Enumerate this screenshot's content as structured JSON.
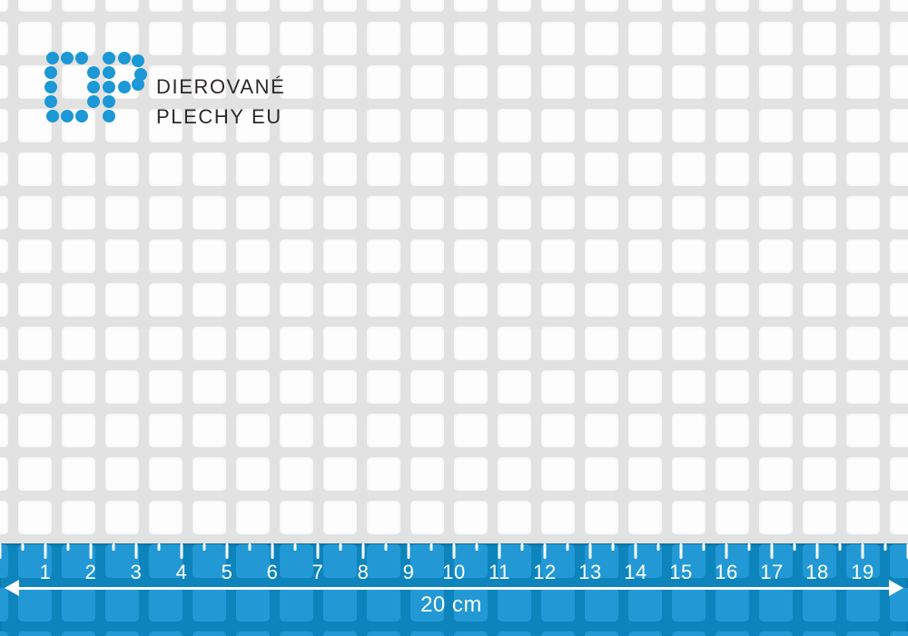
{
  "sheet": {
    "description": "perforated metal sheet with square holes",
    "hole_color": "#fdfdfd",
    "web_color": "#e2e2e2"
  },
  "logo": {
    "line1": "DIEROVANÉ",
    "line2": "PLECHY EU",
    "dot_color": "#1b98d5",
    "text_color": "#2d292a"
  },
  "ruler": {
    "numbers": [
      "1",
      "2",
      "3",
      "4",
      "5",
      "6",
      "7",
      "8",
      "9",
      "10",
      "11",
      "12",
      "13",
      "14",
      "15",
      "16",
      "17",
      "18",
      "19"
    ],
    "length_label": "20 cm",
    "line_color": "#0d84bc",
    "square_color": "#2299d4",
    "mark_color": "#ffffff"
  }
}
